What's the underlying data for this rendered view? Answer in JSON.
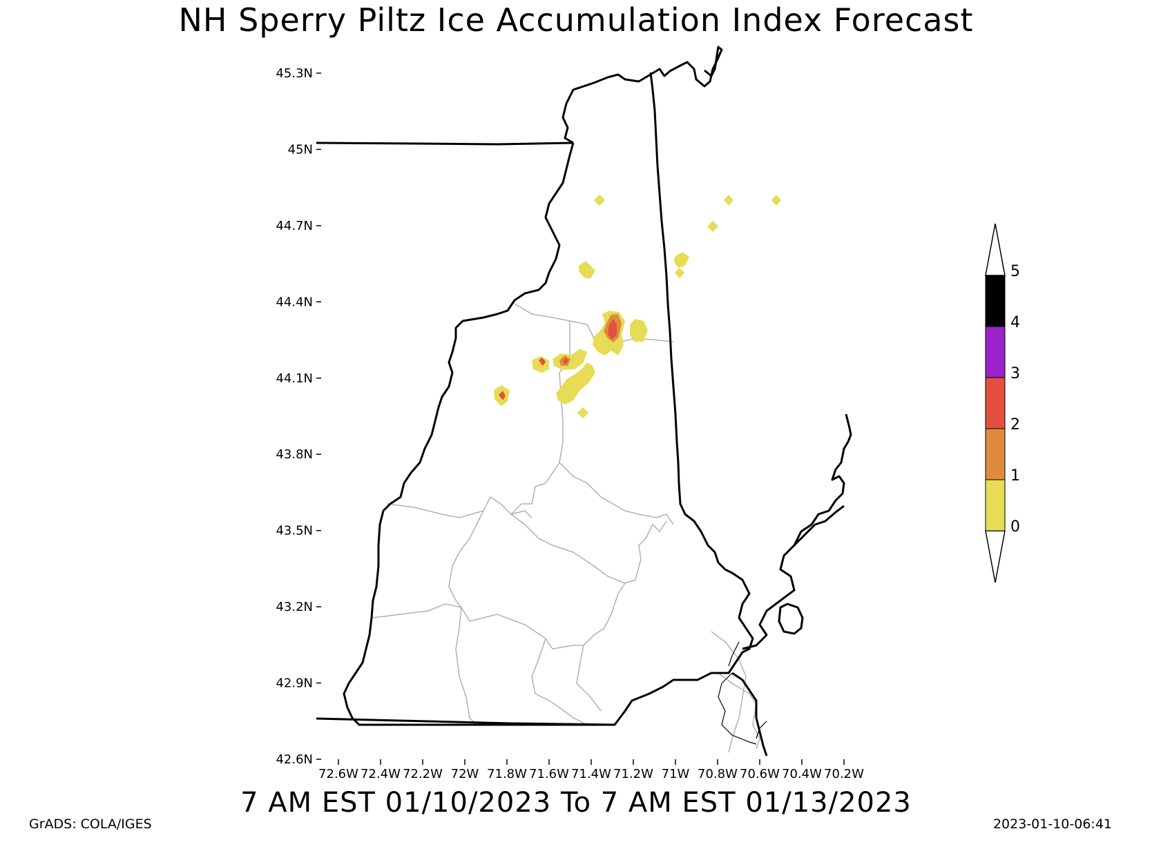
{
  "title": "NH Sperry Piltz Ice Accumulation Index Forecast",
  "valid_period": "7 AM EST 01/10/2023 To 7 AM EST 01/13/2023",
  "credit": "GrADS: COLA/IGES",
  "timestamp": "2023-01-10-06:41",
  "axes": {
    "lat_labels": [
      "45.3N",
      "45N",
      "44.7N",
      "44.4N",
      "44.1N",
      "43.8N",
      "43.5N",
      "43.2N",
      "42.9N",
      "42.6N"
    ],
    "lon_labels": [
      "72.6W",
      "72.4W",
      "72.2W",
      "72W",
      "71.8W",
      "71.6W",
      "71.4W",
      "71.2W",
      "71W",
      "70.8W",
      "70.6W",
      "70.4W",
      "70.2W"
    ]
  },
  "legend": {
    "labels": [
      "0",
      "1",
      "2",
      "3",
      "4",
      "5"
    ],
    "colors": [
      "#e6dc55",
      "#e08a3e",
      "#e4503f",
      "#9a22c8",
      "#000000"
    ]
  }
}
